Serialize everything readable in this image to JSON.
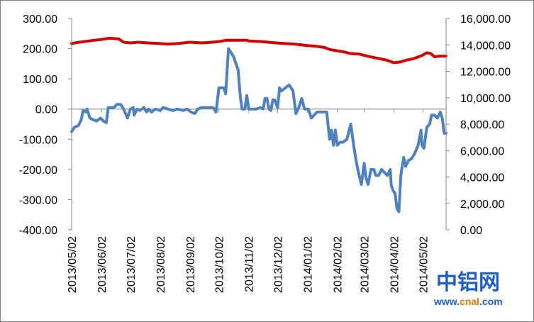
{
  "chart_data": {
    "type": "line",
    "title": "",
    "xlabel": "",
    "ylabel": "",
    "x_ticks": [
      "2013/05/02",
      "2013/06/02",
      "2013/07/02",
      "2013/08/02",
      "2013/09/02",
      "2013/10/02",
      "2013/11/02",
      "2013/12/02",
      "2014/01/02",
      "2014/02/02",
      "2014/03/02",
      "2014/04/02",
      "2014/05/02"
    ],
    "x_range": [
      "2013-05-02",
      "2014-05-26"
    ],
    "y_left": {
      "ylim": [
        -400,
        300
      ],
      "ticks": [
        "300.00",
        "200.00",
        "100.00",
        "0.00",
        "-100.00",
        "-200.00",
        "-300.00",
        "-400.00"
      ]
    },
    "y_right": {
      "ylim": [
        0,
        16000
      ],
      "ticks": [
        "16,000.00",
        "14,000.00",
        "12,000.00",
        "10,000.00",
        "8,000.00",
        "6,000.00",
        "4,000.00",
        "2,000.00",
        "0.00"
      ]
    },
    "grid": false,
    "legend": "none",
    "series": [
      {
        "axis": "left",
        "color": "#4f81bd",
        "points": [
          [
            "2013-05-02",
            -75
          ],
          [
            "2013-05-05",
            -60
          ],
          [
            "2013-05-09",
            -55
          ],
          [
            "2013-05-12",
            -35
          ],
          [
            "2013-05-14",
            -5
          ],
          [
            "2013-05-17",
            -10
          ],
          [
            "2013-05-18",
            0
          ],
          [
            "2013-05-21",
            -30
          ],
          [
            "2013-05-24",
            -35
          ],
          [
            "2013-05-28",
            -40
          ],
          [
            "2013-06-01",
            -30
          ],
          [
            "2013-06-04",
            -40
          ],
          [
            "2013-06-07",
            -45
          ],
          [
            "2013-06-09",
            5
          ],
          [
            "2013-06-12",
            5
          ],
          [
            "2013-06-15",
            5
          ],
          [
            "2013-06-18",
            15
          ],
          [
            "2013-06-22",
            15
          ],
          [
            "2013-06-25",
            0
          ],
          [
            "2013-06-29",
            -30
          ],
          [
            "2013-07-02",
            0
          ],
          [
            "2013-07-05",
            5
          ],
          [
            "2013-07-06",
            -20
          ],
          [
            "2013-07-09",
            0
          ],
          [
            "2013-07-12",
            -5
          ],
          [
            "2013-07-16",
            5
          ],
          [
            "2013-07-19",
            -10
          ],
          [
            "2013-07-21",
            0
          ],
          [
            "2013-07-24",
            -10
          ],
          [
            "2013-07-28",
            0
          ],
          [
            "2013-08-02",
            -5
          ],
          [
            "2013-08-05",
            5
          ],
          [
            "2013-08-10",
            0
          ],
          [
            "2013-08-15",
            -5
          ],
          [
            "2013-08-20",
            0
          ],
          [
            "2013-08-26",
            -5
          ],
          [
            "2013-08-30",
            0
          ],
          [
            "2013-09-03",
            -10
          ],
          [
            "2013-09-07",
            -15
          ],
          [
            "2013-09-10",
            0
          ],
          [
            "2013-09-14",
            5
          ],
          [
            "2013-09-18",
            5
          ],
          [
            "2013-09-22",
            5
          ],
          [
            "2013-09-26",
            5
          ],
          [
            "2013-09-29",
            -10
          ],
          [
            "2013-10-02",
            70
          ],
          [
            "2013-10-07",
            70
          ],
          [
            "2013-10-09",
            50
          ],
          [
            "2013-10-12",
            200
          ],
          [
            "2013-10-17",
            175
          ],
          [
            "2013-10-22",
            130
          ],
          [
            "2013-10-24",
            50
          ],
          [
            "2013-10-26",
            0
          ],
          [
            "2013-10-29",
            0
          ],
          [
            "2013-10-31",
            45
          ],
          [
            "2013-11-02",
            0
          ],
          [
            "2013-11-06",
            0
          ],
          [
            "2013-11-10",
            0
          ],
          [
            "2013-11-14",
            5
          ],
          [
            "2013-11-17",
            0
          ],
          [
            "2013-11-19",
            35
          ],
          [
            "2013-11-21",
            35
          ],
          [
            "2013-11-23",
            0
          ],
          [
            "2013-11-25",
            -5
          ],
          [
            "2013-11-27",
            30
          ],
          [
            "2013-11-29",
            30
          ],
          [
            "2013-12-02",
            5
          ],
          [
            "2013-12-04",
            70
          ],
          [
            "2013-12-06",
            60
          ],
          [
            "2013-12-10",
            70
          ],
          [
            "2013-12-14",
            80
          ],
          [
            "2013-12-18",
            60
          ],
          [
            "2013-12-21",
            -15
          ],
          [
            "2013-12-24",
            5
          ],
          [
            "2013-12-27",
            35
          ],
          [
            "2013-12-30",
            0
          ],
          [
            "2014-01-03",
            0
          ],
          [
            "2014-01-06",
            -30
          ],
          [
            "2014-01-09",
            -20
          ],
          [
            "2014-01-12",
            -10
          ],
          [
            "2014-01-15",
            -10
          ],
          [
            "2014-01-19",
            -10
          ],
          [
            "2014-01-22",
            -10
          ],
          [
            "2014-01-25",
            -100
          ],
          [
            "2014-01-27",
            -70
          ],
          [
            "2014-01-29",
            -120
          ],
          [
            "2014-01-31",
            -70
          ],
          [
            "2014-02-02",
            -120
          ],
          [
            "2014-02-05",
            -110
          ],
          [
            "2014-02-08",
            -110
          ],
          [
            "2014-02-12",
            -100
          ],
          [
            "2014-02-16",
            -50
          ],
          [
            "2014-02-19",
            -120
          ],
          [
            "2014-02-22",
            -180
          ],
          [
            "2014-02-24",
            -210
          ],
          [
            "2014-02-27",
            -250
          ],
          [
            "2014-03-02",
            -180
          ],
          [
            "2014-03-04",
            -230
          ],
          [
            "2014-03-06",
            -250
          ],
          [
            "2014-03-09",
            -200
          ],
          [
            "2014-03-12",
            -200
          ],
          [
            "2014-03-14",
            -220
          ],
          [
            "2014-03-17",
            -220
          ],
          [
            "2014-03-20",
            -200
          ],
          [
            "2014-03-23",
            -210
          ],
          [
            "2014-03-26",
            -220
          ],
          [
            "2014-03-29",
            -200
          ],
          [
            "2014-03-30",
            -250
          ],
          [
            "2014-04-01",
            -270
          ],
          [
            "2014-04-03",
            -280
          ],
          [
            "2014-04-05",
            -330
          ],
          [
            "2014-04-07",
            -340
          ],
          [
            "2014-04-09",
            -220
          ],
          [
            "2014-04-12",
            -160
          ],
          [
            "2014-04-14",
            -190
          ],
          [
            "2014-04-17",
            -170
          ],
          [
            "2014-04-20",
            -165
          ],
          [
            "2014-04-23",
            -150
          ],
          [
            "2014-04-27",
            -120
          ],
          [
            "2014-04-30",
            -70
          ],
          [
            "2014-05-01",
            -120
          ],
          [
            "2014-05-03",
            -130
          ],
          [
            "2014-05-06",
            -60
          ],
          [
            "2014-05-09",
            -50
          ],
          [
            "2014-05-11",
            -20
          ],
          [
            "2014-05-14",
            -20
          ],
          [
            "2014-05-17",
            -30
          ],
          [
            "2014-05-20",
            -10
          ],
          [
            "2014-05-22",
            -30
          ],
          [
            "2014-05-24",
            -80
          ],
          [
            "2014-05-26",
            -80
          ]
        ]
      },
      {
        "axis": "right",
        "color": "#d00000",
        "points": [
          [
            "2013-05-02",
            14100
          ],
          [
            "2013-05-10",
            14200
          ],
          [
            "2013-05-20",
            14300
          ],
          [
            "2013-06-01",
            14400
          ],
          [
            "2013-06-10",
            14500
          ],
          [
            "2013-06-20",
            14450
          ],
          [
            "2013-06-25",
            14200
          ],
          [
            "2013-07-02",
            14150
          ],
          [
            "2013-07-10",
            14200
          ],
          [
            "2013-07-20",
            14150
          ],
          [
            "2013-08-02",
            14100
          ],
          [
            "2013-08-10",
            14050
          ],
          [
            "2013-08-20",
            14100
          ],
          [
            "2013-09-02",
            14200
          ],
          [
            "2013-09-15",
            14150
          ],
          [
            "2013-09-25",
            14200
          ],
          [
            "2013-10-02",
            14250
          ],
          [
            "2013-10-10",
            14350
          ],
          [
            "2013-10-31",
            14350
          ],
          [
            "2013-11-02",
            14300
          ],
          [
            "2013-11-15",
            14250
          ],
          [
            "2013-11-30",
            14150
          ],
          [
            "2013-12-10",
            14100
          ],
          [
            "2013-12-20",
            14050
          ],
          [
            "2014-01-02",
            13950
          ],
          [
            "2014-01-10",
            13900
          ],
          [
            "2014-01-20",
            13800
          ],
          [
            "2014-01-25",
            13650
          ],
          [
            "2014-02-02",
            13550
          ],
          [
            "2014-02-10",
            13450
          ],
          [
            "2014-02-15",
            13350
          ],
          [
            "2014-02-25",
            13300
          ],
          [
            "2014-03-05",
            13150
          ],
          [
            "2014-03-15",
            13000
          ],
          [
            "2014-03-25",
            12850
          ],
          [
            "2014-04-02",
            12650
          ],
          [
            "2014-04-08",
            12700
          ],
          [
            "2014-04-15",
            12850
          ],
          [
            "2014-04-22",
            12950
          ],
          [
            "2014-05-01",
            13200
          ],
          [
            "2014-05-06",
            13400
          ],
          [
            "2014-05-10",
            13350
          ],
          [
            "2014-05-14",
            13100
          ],
          [
            "2014-05-20",
            13150
          ],
          [
            "2014-05-26",
            13150
          ]
        ]
      }
    ]
  },
  "watermark": {
    "brand": "中铝网",
    "url_prefix": "www.",
    "url_name": "cnal",
    "url_suffix": ".com",
    "brand_color": "#1f5fc4",
    "url_accent": "#e87a00"
  }
}
